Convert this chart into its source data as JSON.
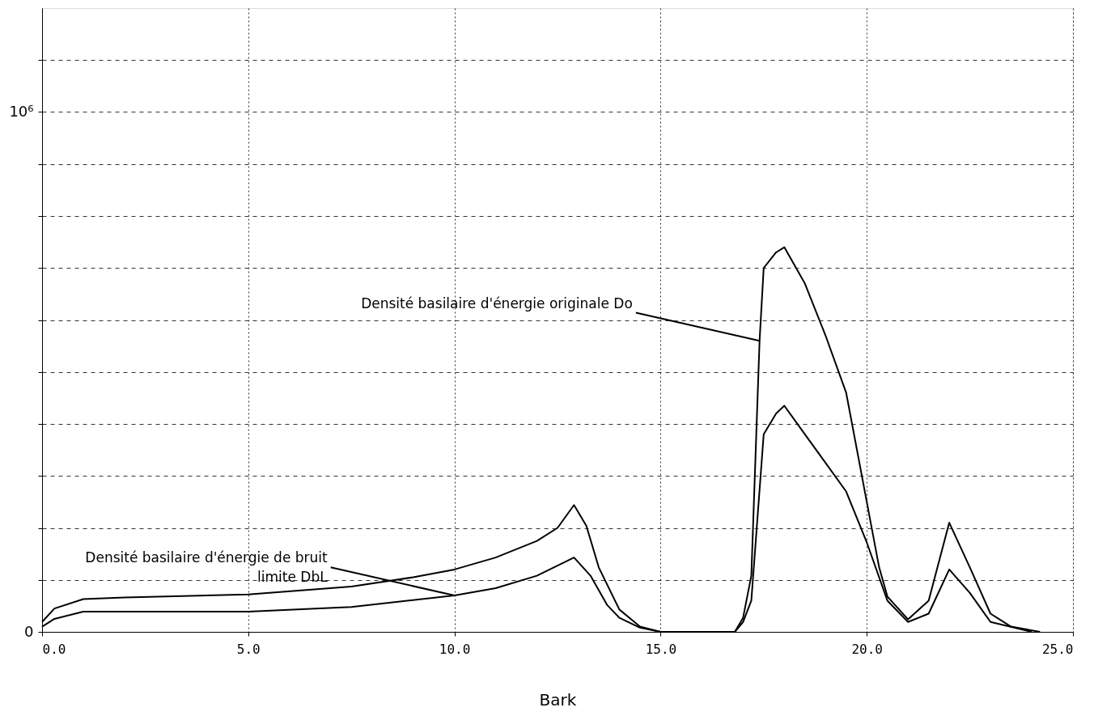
{
  "chart_data": {
    "type": "line",
    "xlabel": "Bark",
    "xlim": [
      0,
      25
    ],
    "ylim": [
      0,
      1200000
    ],
    "xticks": [
      {
        "value": 0,
        "label": "0.0"
      },
      {
        "value": 5,
        "label": "5.0"
      },
      {
        "value": 10,
        "label": "10.0"
      },
      {
        "value": 15,
        "label": "15.0"
      },
      {
        "value": 20,
        "label": "20.0"
      },
      {
        "value": 25,
        "label": "25.0"
      }
    ],
    "yticks": [
      0,
      {
        "value": 100000,
        "label": null
      },
      {
        "value": 200000,
        "label": null
      },
      {
        "value": 300000,
        "label": null
      },
      {
        "value": 400000,
        "label": null
      },
      {
        "value": 500000,
        "label": null
      },
      {
        "value": 600000,
        "label": null
      },
      {
        "value": 700000,
        "label": null
      },
      {
        "value": 800000,
        "label": null
      },
      {
        "value": 900000,
        "label": null
      },
      {
        "value": 1000000,
        "label": "10⁶"
      },
      {
        "value": 1100000,
        "label": null
      }
    ],
    "grid": true,
    "legend": false,
    "marker": "none",
    "line_style": "solid",
    "series": [
      {
        "color": "#000000",
        "x": [
          0,
          0.3,
          1,
          2,
          5,
          7.5,
          9,
          10,
          11,
          12,
          12.5,
          12.9,
          13.2,
          13.5,
          14,
          14.5,
          15,
          16.8,
          17,
          17.2,
          17.4,
          17.5,
          17.8,
          18,
          18.5,
          19,
          19.5,
          20,
          20.3,
          20.5,
          21,
          21.5,
          22,
          22.5,
          23,
          23.5,
          24.2
        ],
        "values": [
          19000,
          45000,
          63000,
          66000,
          72000,
          87000,
          105000,
          120000,
          143000,
          175000,
          200000,
          244000,
          204000,
          124000,
          43000,
          10000,
          0,
          0,
          27000,
          108000,
          560000,
          700000,
          730000,
          740000,
          670000,
          570000,
          460000,
          250000,
          124000,
          68000,
          24000,
          60000,
          210000,
          124000,
          35000,
          10000,
          0
        ]
      },
      {
        "color": "#000000",
        "x": [
          0,
          0.3,
          1,
          2,
          5,
          7.5,
          10,
          11,
          12,
          12.9,
          13.3,
          13.7,
          14,
          14.5,
          15,
          16.8,
          17,
          17.2,
          17.5,
          17.8,
          18,
          18.5,
          19,
          19.5,
          20,
          20.5,
          21,
          21.5,
          22,
          22.5,
          23,
          24
        ],
        "values": [
          10000,
          25000,
          39000,
          39000,
          39000,
          48000,
          70000,
          84000,
          108000,
          143000,
          108000,
          52000,
          27000,
          8000,
          0,
          0,
          19000,
          60000,
          380000,
          420000,
          435000,
          380000,
          325000,
          270000,
          172000,
          60000,
          19000,
          35000,
          120000,
          75000,
          19000,
          0
        ]
      }
    ],
    "annotations": [
      {
        "text": "Densité basilaire d'énergie originale Do",
        "x": 17.4,
        "y": 560000
      },
      {
        "text": "Densité basilaire d'énergie de bruit limite DbL",
        "x": 10,
        "y": 70000
      }
    ]
  }
}
